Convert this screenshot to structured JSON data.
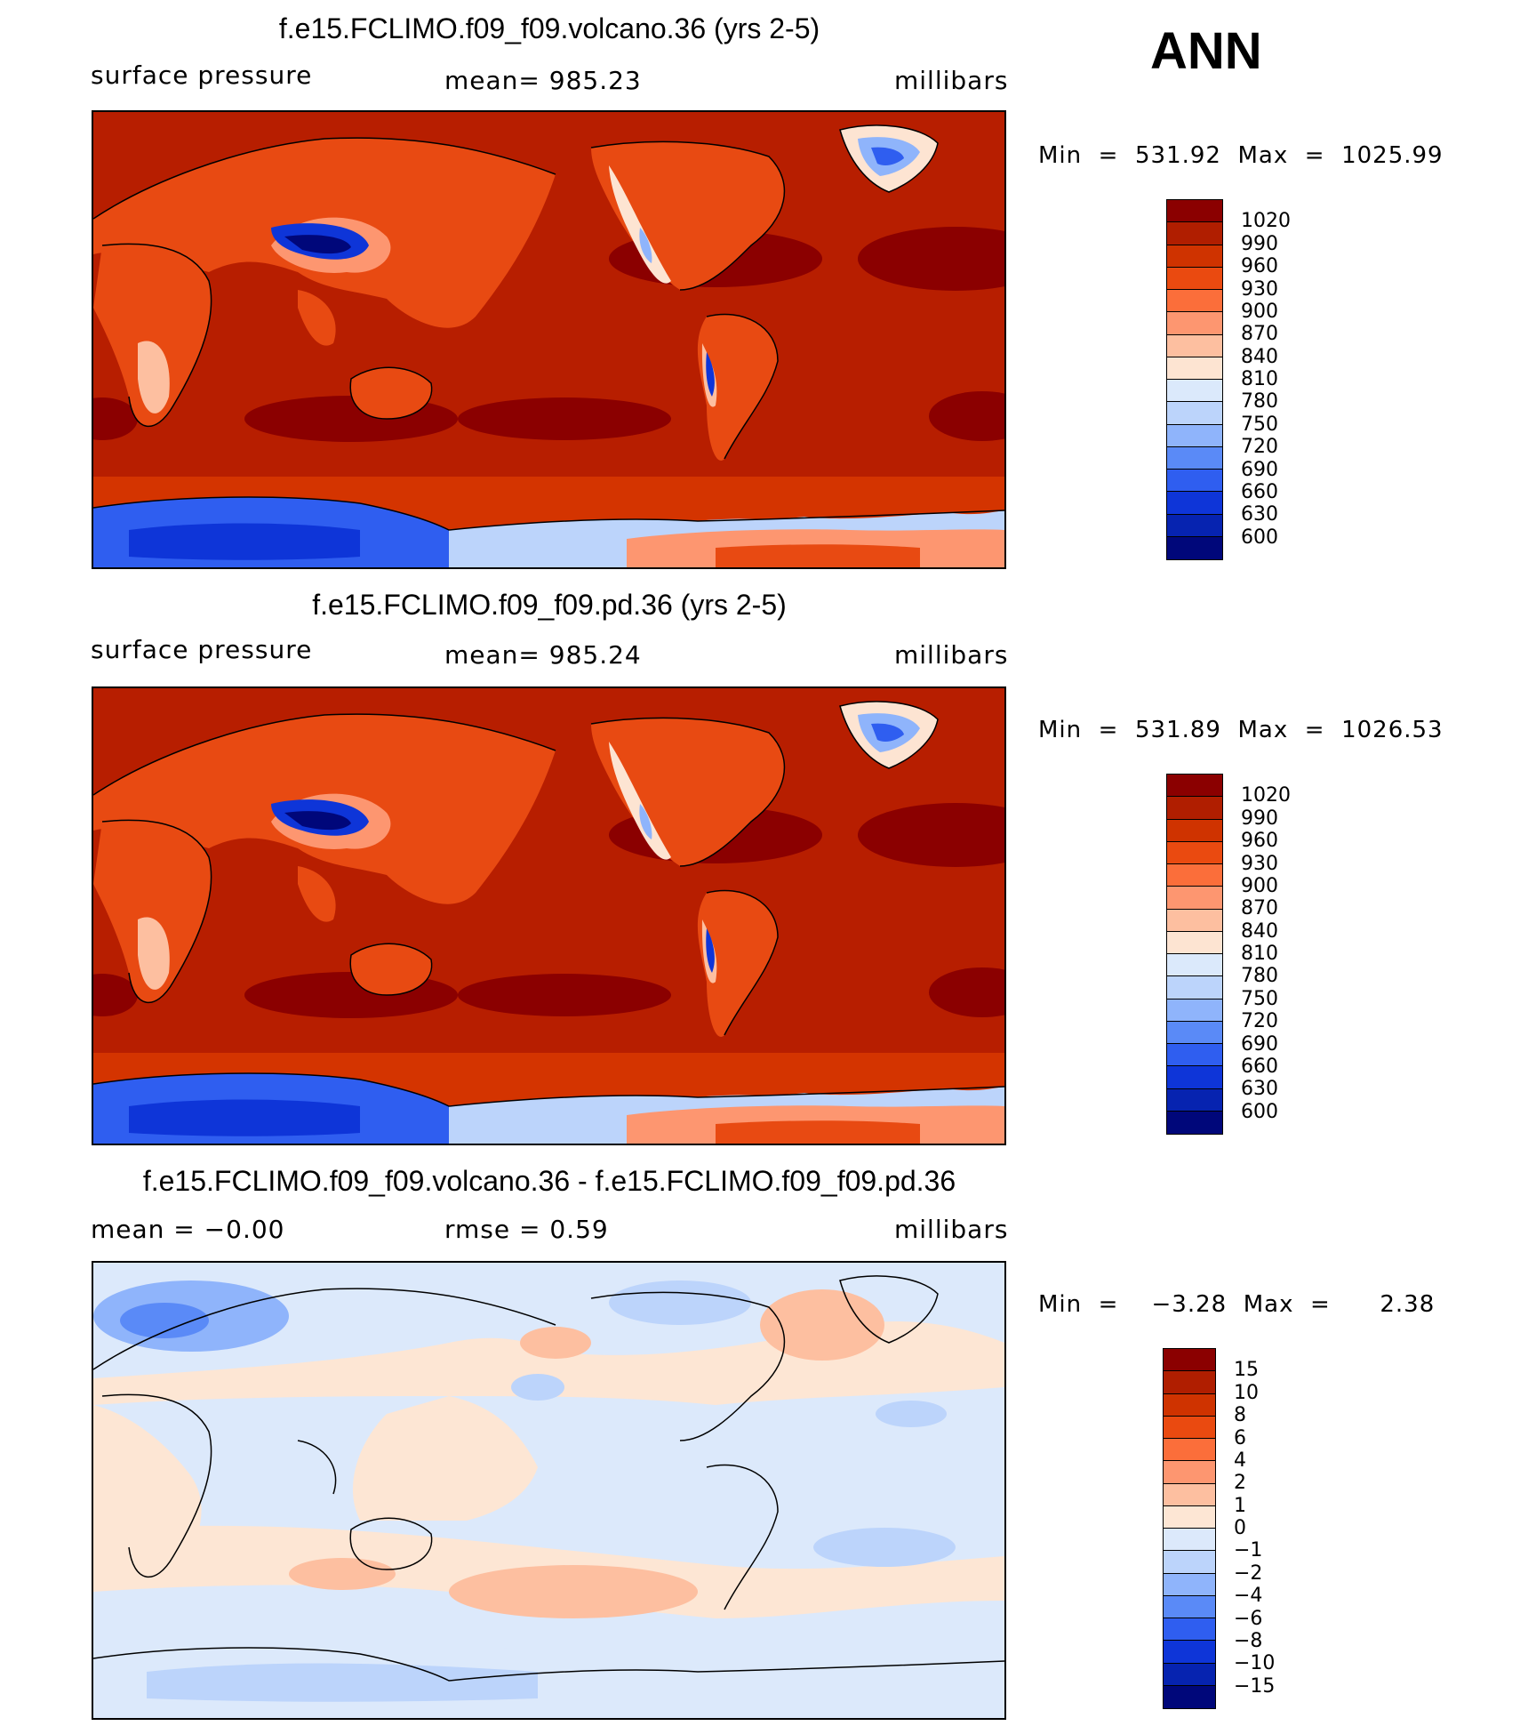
{
  "season": "ANN",
  "panels": [
    {
      "title": "f.e15.FCLIMO.f09_f09.volcano.36 (yrs 2-5)",
      "left_label": "surface pressure",
      "center_label": "mean= 985.23",
      "right_label": "millibars",
      "minmax": "Min  =  531.92  Max  =  1025.99",
      "kind": "abs"
    },
    {
      "title": "f.e15.FCLIMO.f09_f09.pd.36 (yrs 2-5)",
      "left_label": "surface pressure",
      "center_label": "mean= 985.24",
      "right_label": "millibars",
      "minmax": "Min  =  531.89  Max  =  1026.53",
      "kind": "abs"
    },
    {
      "title": "f.e15.FCLIMO.f09_f09.volcano.36 - f.e15.FCLIMO.f09_f09.pd.36",
      "left_label": "mean  =    −0.00",
      "center_label": "rmse  =     0.59",
      "right_label": "millibars",
      "minmax": "Min  =    −3.28  Max  =      2.38",
      "kind": "diff"
    }
  ],
  "colorbars": {
    "abs": {
      "labels": [
        "1020",
        "990",
        "960",
        "930",
        "900",
        "870",
        "840",
        "810",
        "780",
        "750",
        "720",
        "690",
        "660",
        "630",
        "600"
      ],
      "colors": [
        "#8b0000",
        "#b01e00",
        "#cf3300",
        "#ea4a10",
        "#fb6e3a",
        "#fd9670",
        "#fdbfa0",
        "#fde4d2",
        "#dbe9fb",
        "#bcd4fb",
        "#8fb4fb",
        "#5a8af7",
        "#2f5ef0",
        "#0e35d8",
        "#0623b0",
        "#00077a"
      ]
    },
    "diff": {
      "labels": [
        "15",
        "10",
        "8",
        "6",
        "4",
        "2",
        "1",
        "0",
        "−1",
        "−2",
        "−4",
        "−6",
        "−8",
        "−10",
        "−15"
      ],
      "colors": [
        "#8b0000",
        "#b01e00",
        "#cf3300",
        "#ea4a10",
        "#fb6e3a",
        "#fd9670",
        "#fdbfa0",
        "#fde6d4",
        "#dce9fb",
        "#bcd4fb",
        "#8fb4fb",
        "#5a8af7",
        "#2f5ef0",
        "#0e35d8",
        "#0623b0",
        "#00077a"
      ]
    }
  }
}
